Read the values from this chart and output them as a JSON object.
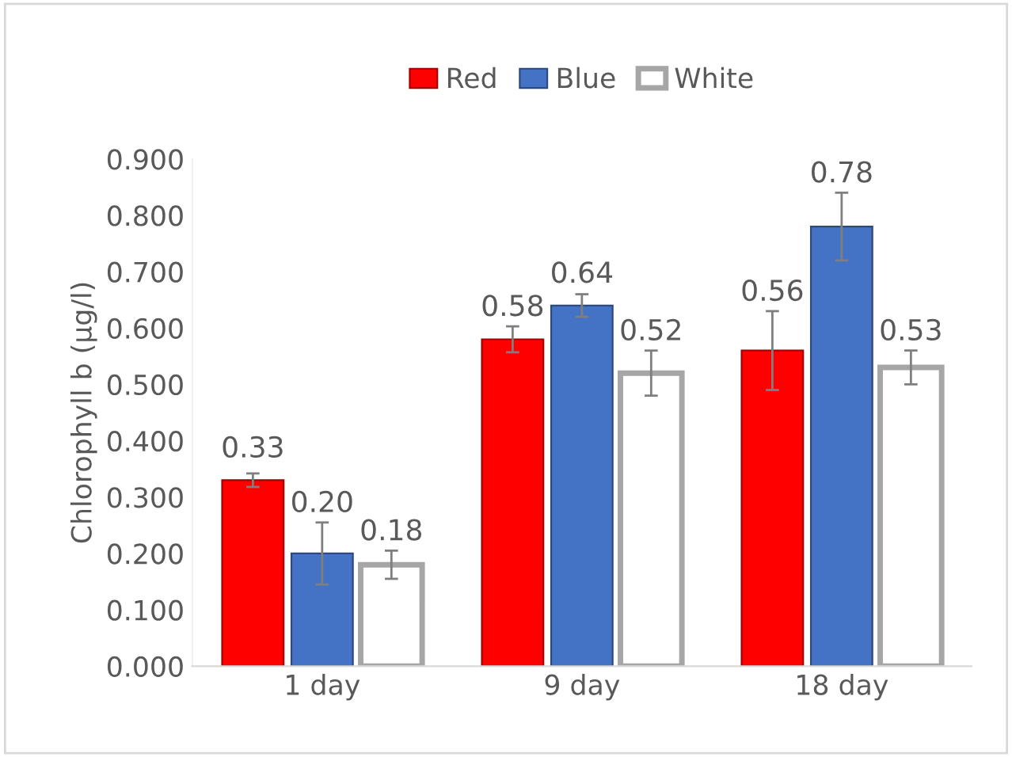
{
  "chart_data": {
    "type": "bar",
    "ylabel": "Chlorophyll b (µg/l)",
    "categories": [
      "1 day",
      "9 day",
      "18 day"
    ],
    "series": [
      {
        "name": "Red",
        "color": "#ff0000",
        "values": [
          0.33,
          0.58,
          0.56
        ],
        "value_labels": [
          "0.33",
          "0.58",
          "0.56"
        ],
        "errors": [
          0.012,
          0.023,
          0.07
        ]
      },
      {
        "name": "Blue",
        "color": "#4472c4",
        "values": [
          0.2,
          0.64,
          0.78
        ],
        "value_labels": [
          "0.20",
          "0.64",
          "0.78"
        ],
        "errors": [
          0.055,
          0.02,
          0.06
        ]
      },
      {
        "name": "White",
        "color": "#ffffff",
        "values": [
          0.18,
          0.52,
          0.53
        ],
        "value_labels": [
          "0.18",
          "0.52",
          "0.53"
        ],
        "errors": [
          0.025,
          0.04,
          0.03
        ]
      }
    ],
    "ylim": [
      0,
      0.9
    ],
    "yticks": [
      {
        "value": 0,
        "label": "0.000"
      },
      {
        "value": 0.1,
        "label": "0.100"
      },
      {
        "value": 0.2,
        "label": "0.200"
      },
      {
        "value": 0.3,
        "label": "0.300"
      },
      {
        "value": 0.4,
        "label": "0.400"
      },
      {
        "value": 0.5,
        "label": "0.500"
      },
      {
        "value": 0.6,
        "label": "0.600"
      },
      {
        "value": 0.7,
        "label": "0.700"
      },
      {
        "value": 0.8,
        "label": "0.800"
      },
      {
        "value": 0.9,
        "label": "0.900"
      }
    ],
    "legend": "top",
    "grid": false
  }
}
